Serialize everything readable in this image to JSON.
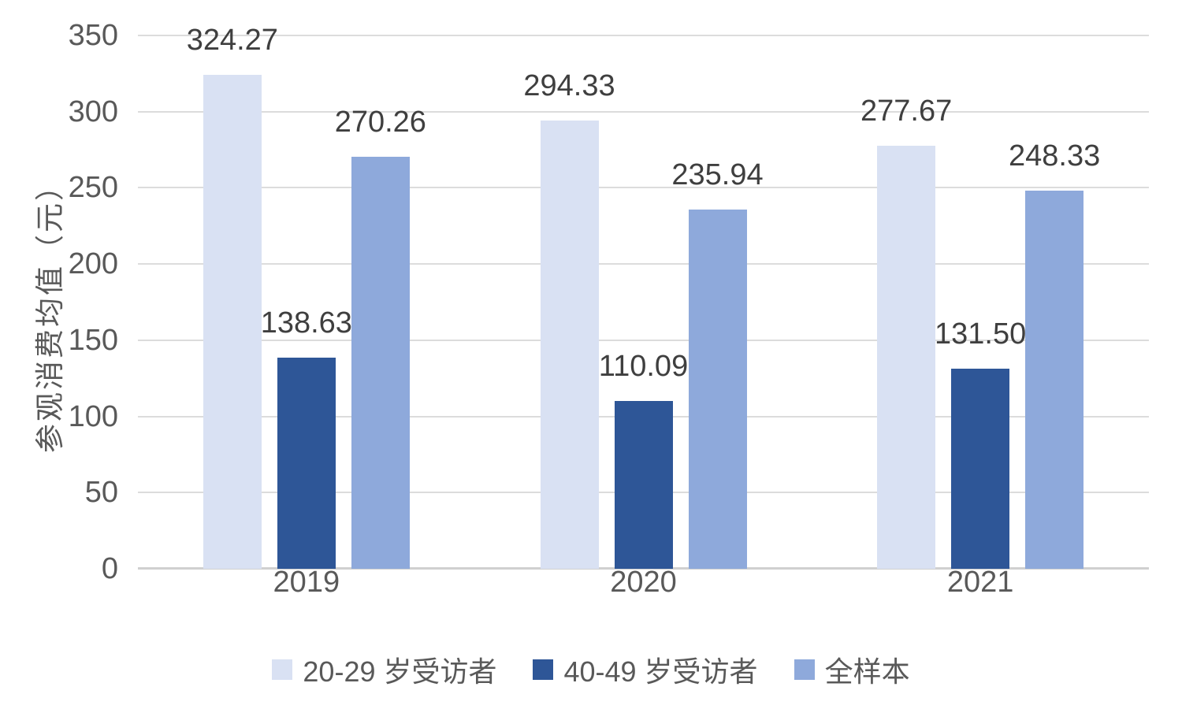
{
  "chart_data": {
    "type": "bar",
    "title": "",
    "ylabel": "参观消费均值（元）",
    "xlabel": "",
    "categories": [
      "2019",
      "2020",
      "2021"
    ],
    "series": [
      {
        "name": "20-29 岁受访者",
        "color": "#D9E1F3",
        "values": [
          324.27,
          294.33,
          277.67
        ],
        "labels": [
          "324.27",
          "294.33",
          "277.67"
        ]
      },
      {
        "name": "40-49 岁受访者",
        "color": "#2E5697",
        "values": [
          138.63,
          110.09,
          131.5
        ],
        "labels": [
          "138.63",
          "110.09",
          "131.50"
        ]
      },
      {
        "name": "全样本",
        "color": "#8EA9DB",
        "values": [
          270.26,
          235.94,
          248.33
        ],
        "labels": [
          "270.26",
          "235.94",
          "248.33"
        ]
      }
    ],
    "ylim": [
      0,
      350
    ],
    "ytick_step": 50,
    "yticks": [
      "0",
      "50",
      "100",
      "150",
      "200",
      "250",
      "300",
      "350"
    ],
    "grid": "horizontal",
    "legend_position": "bottom"
  },
  "style": {
    "gridline_color": "#DCDCDC",
    "axis_line_color": "#D0D0D0",
    "tick_text_color": "#595959",
    "data_label_color": "#3F3F3F",
    "legend_text_color": "#595959"
  }
}
